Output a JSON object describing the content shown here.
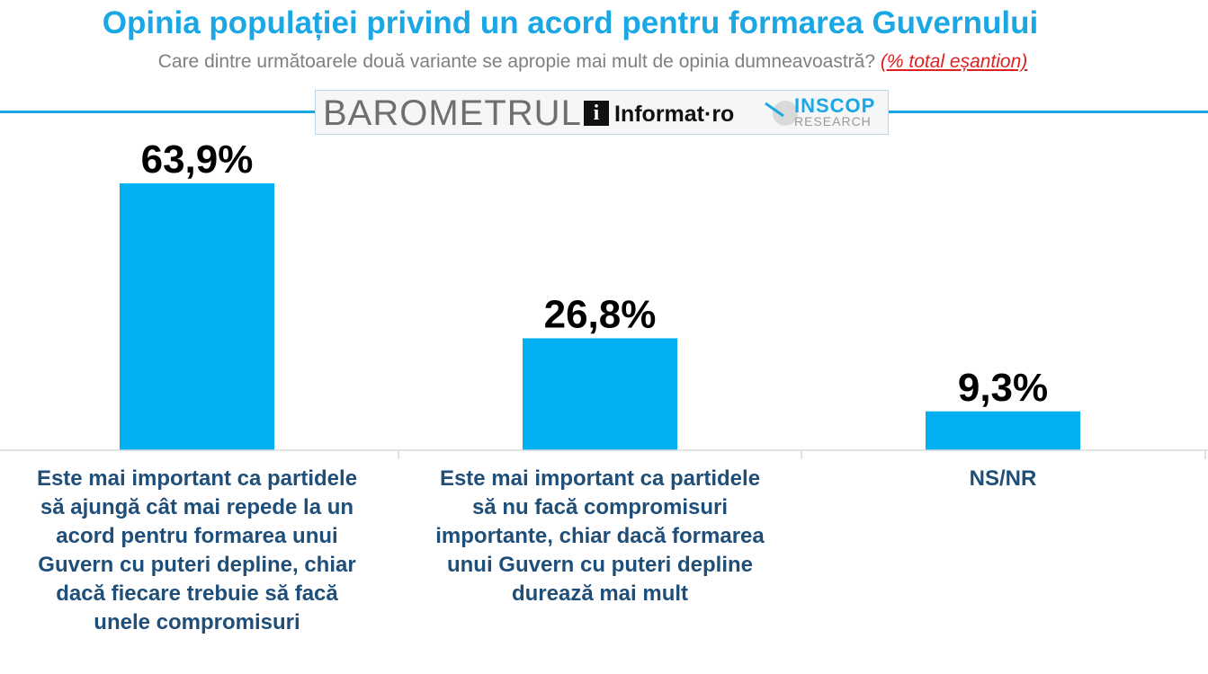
{
  "header": {
    "title": "Opinia populației privind un acord pentru formarea Guvernului",
    "subtitle": "Care dintre următoarele două variante se apropie mai mult de opinia dumneavoastră?",
    "subtitle_note": "(% total eșantion)"
  },
  "branding": {
    "barometru": "BAROMETRUL",
    "informat_i": "i",
    "informat": "Informat·ro",
    "inscop": "INSCOP",
    "research": "RESEARCH"
  },
  "colors": {
    "accent": "#1aa7e3",
    "bar": "#00b0f0",
    "category_text": "#1f4e79",
    "value_text": "#000000",
    "subtitle_note": "#e02020"
  },
  "chart_data": {
    "type": "bar",
    "categories": [
      "Este mai important ca partidele să ajungă cât mai repede la un acord pentru formarea unui Guvern cu puteri depline, chiar dacă fiecare trebuie să facă unele compromisuri",
      "Este mai important ca partidele să nu facă compromisuri importante, chiar dacă formarea unui Guvern cu puteri depline durează mai mult",
      "NS/NR"
    ],
    "category_lines": [
      [
        "Este mai important ca partidele",
        "să ajungă cât mai repede la un",
        "acord pentru formarea unui",
        "Guvern cu puteri depline, chiar",
        "dacă fiecare trebuie să facă",
        "unele compromisuri"
      ],
      [
        "Este mai important ca partidele",
        "să nu facă compromisuri",
        "importante, chiar dacă formarea",
        "unui Guvern cu puteri depline",
        "durează mai mult"
      ],
      [
        "NS/NR"
      ]
    ],
    "values": [
      63.9,
      26.8,
      9.3
    ],
    "value_labels": [
      "63,9%",
      "26,8%",
      "9,3%"
    ],
    "unit": "%",
    "ylim": [
      0,
      63.9
    ],
    "grid": false,
    "legend": "none"
  }
}
